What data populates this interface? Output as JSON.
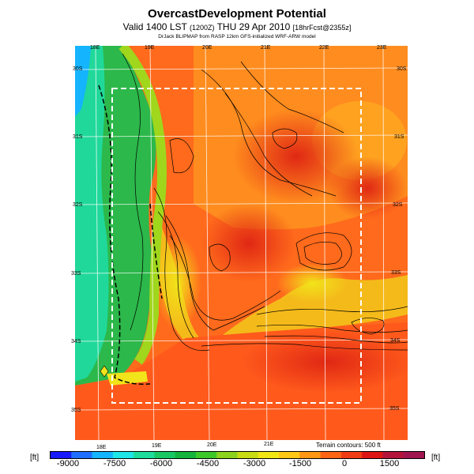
{
  "title": "OvercastDevelopment Potential",
  "subtitle_main": "Valid 1400 LST",
  "subtitle_small1": "(1200Z)",
  "subtitle_date": "THU 29 Apr 2010",
  "subtitle_small2": "[18hrFcst@2355z]",
  "credit": "DrJack BLIPMAP from RASP 12km GFS-initialized WRF-ARW model",
  "map": {
    "lon_labels_top": [
      "18E",
      "19E",
      "20E",
      "21E",
      "22E",
      "23E"
    ],
    "lon_labels_bottom": [
      "18E",
      "19E",
      "20E",
      "21E"
    ],
    "lat_labels_left": [
      "30S",
      "31S",
      "32S",
      "33S",
      "34S",
      "35S"
    ],
    "lat_labels_right": [
      "30S",
      "31S",
      "32S",
      "33S",
      "34S",
      "35S"
    ],
    "terrain_note": "Terrain contours: 500 ft"
  },
  "colorbar": {
    "unit_left": "[ft]",
    "unit_right": "[ft]",
    "ticks": [
      "-9000",
      "-7500",
      "-6000",
      "-4500",
      "-3000",
      "-1500",
      "0",
      "1500"
    ],
    "colors": [
      "#1a1aff",
      "#1e6fff",
      "#14b4ff",
      "#1ee6e6",
      "#1edc9b",
      "#19c864",
      "#14b43c",
      "#3cc828",
      "#8cd21e",
      "#c8dc14",
      "#f0e614",
      "#ffc814",
      "#ff9614",
      "#ff6414",
      "#f03c14",
      "#dc1414",
      "#b4143c",
      "#a01450"
    ],
    "accent_colors": {
      "ocean": "#20d89a",
      "land_low": "#ff5a1e",
      "land_high": "#f2e41a",
      "box": "#ffffff"
    }
  }
}
